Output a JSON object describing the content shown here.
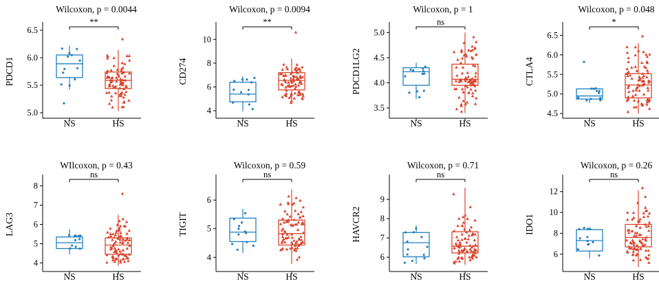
{
  "colors": {
    "NS": "#1f7fbf",
    "HS": "#d9432b"
  },
  "chart_data": [
    {
      "type": "box",
      "gene": "PDCD1",
      "title": "Wilcoxon, p = 0.0044",
      "ylabel": "PDCD1",
      "categories": [
        "NS",
        "HS"
      ],
      "significance": "**",
      "yticks": [
        5.0,
        5.5,
        6.0,
        6.5
      ],
      "ylim": [
        4.95,
        6.55
      ],
      "boxes": [
        {
          "q1": 5.64,
          "median": 5.89,
          "q3": 6.05,
          "min": 5.42,
          "max": 6.22,
          "outlier": [
            5.17
          ]
        },
        {
          "q1": 5.44,
          "median": 5.59,
          "q3": 5.74,
          "min": 5.03,
          "max": 6.14,
          "outlier": [
            6.34
          ]
        }
      ],
      "n": [
        12,
        80
      ],
      "seed": 11
    },
    {
      "type": "box",
      "gene": "CD274",
      "title": "Wilcoxon, p = 0.0094",
      "ylabel": "CD274",
      "categories": [
        "NS",
        "HS"
      ],
      "significance": "**",
      "yticks": [
        4,
        6,
        8,
        10
      ],
      "ylim": [
        3.6,
        11.0
      ],
      "boxes": [
        {
          "q1": 4.75,
          "median": 5.4,
          "q3": 6.4,
          "min": 3.95,
          "max": 6.9
        },
        {
          "q1": 5.75,
          "median": 6.55,
          "q3": 7.2,
          "min": 4.55,
          "max": 8.4,
          "outlier": [
            10.6
          ]
        }
      ],
      "n": [
        12,
        80
      ],
      "seed": 23
    },
    {
      "type": "box",
      "gene": "PDCD1LG2",
      "title": "Wilcoxon, p = 1",
      "ylabel": "PDCD1LG2",
      "categories": [
        "NS",
        "HS"
      ],
      "significance": "ns",
      "yticks": [
        3.5,
        4.0,
        4.5,
        5.0
      ],
      "ylim": [
        3.35,
        5.1
      ],
      "boxes": [
        {
          "q1": 3.95,
          "median": 4.22,
          "q3": 4.3,
          "min": 3.68,
          "max": 4.4
        },
        {
          "q1": 3.95,
          "median": 4.07,
          "q3": 4.37,
          "min": 3.4,
          "max": 5.0
        }
      ],
      "n": [
        12,
        80
      ],
      "seed": 37
    },
    {
      "type": "box",
      "gene": "CTLA4",
      "title": "Wilcoxon, p = 0.048",
      "ylabel": "CTLA4",
      "categories": [
        "NS",
        "HS"
      ],
      "significance": "*",
      "yticks": [
        4.5,
        5.0,
        5.5,
        6.0,
        6.5
      ],
      "ylim": [
        4.45,
        6.7
      ],
      "boxes": [
        {
          "q1": 4.87,
          "median": 4.95,
          "q3": 5.13,
          "min": 4.77,
          "max": 5.15,
          "outlier": [
            5.82
          ]
        },
        {
          "q1": 4.9,
          "median": 5.23,
          "q3": 5.52,
          "min": 4.5,
          "max": 6.3,
          "outlier": [
            6.48
          ]
        }
      ],
      "n": [
        12,
        80
      ],
      "seed": 41
    },
    {
      "type": "box",
      "gene": "LAG3",
      "title": "WIlcoxon, p = 0.43",
      "ylabel": "LAG3",
      "categories": [
        "NS",
        "HS"
      ],
      "significance": "ns",
      "yticks": [
        4,
        5,
        6,
        7,
        8
      ],
      "ylim": [
        3.7,
        8.3
      ],
      "boxes": [
        {
          "q1": 4.75,
          "median": 5.05,
          "q3": 5.35,
          "min": 4.45,
          "max": 5.75
        },
        {
          "q1": 4.45,
          "median": 4.93,
          "q3": 5.3,
          "min": 3.85,
          "max": 6.5,
          "outlier": [
            7.6
          ]
        }
      ],
      "n": [
        12,
        80
      ],
      "seed": 53
    },
    {
      "type": "box",
      "gene": "TIGIT",
      "title": "Wilcoxon, p = 0.59",
      "ylabel": "TIGIT",
      "categories": [
        "NS",
        "HS"
      ],
      "significance": "ns",
      "yticks": [
        4,
        5,
        6
      ],
      "ylim": [
        3.6,
        6.7
      ],
      "boxes": [
        {
          "q1": 4.55,
          "median": 4.88,
          "q3": 5.37,
          "min": 4.15,
          "max": 5.7
        },
        {
          "q1": 4.43,
          "median": 4.83,
          "q3": 5.3,
          "min": 3.77,
          "max": 6.37
        }
      ],
      "n": [
        12,
        80
      ],
      "seed": 67
    },
    {
      "type": "box",
      "gene": "HAVCR2",
      "title": "Wilcoxon, p = 0.71",
      "ylabel": "HAVCR2",
      "categories": [
        "NS",
        "HS"
      ],
      "significance": "ns",
      "yticks": [
        6,
        7,
        8,
        9
      ],
      "ylim": [
        5.4,
        10.0
      ],
      "boxes": [
        {
          "q1": 6.02,
          "median": 6.75,
          "q3": 7.28,
          "min": 5.65,
          "max": 7.65
        },
        {
          "q1": 6.22,
          "median": 6.57,
          "q3": 7.32,
          "min": 5.6,
          "max": 9.6
        }
      ],
      "n": [
        12,
        80
      ],
      "seed": 79
    },
    {
      "type": "box",
      "gene": "IDO1",
      "title": "Wilcoxon, p = 0.26",
      "ylabel": "IDO1",
      "categories": [
        "NS",
        "HS"
      ],
      "significance": "ns",
      "yticks": [
        6,
        8,
        10,
        12
      ],
      "ylim": [
        4.6,
        13.1
      ],
      "boxes": [
        {
          "q1": 6.3,
          "median": 7.3,
          "q3": 8.35,
          "min": 5.6,
          "max": 8.6
        },
        {
          "q1": 6.7,
          "median": 7.6,
          "q3": 8.85,
          "min": 4.75,
          "max": 12.1,
          "outlier": [
            12.35
          ]
        }
      ],
      "n": [
        12,
        80
      ],
      "seed": 97
    }
  ]
}
